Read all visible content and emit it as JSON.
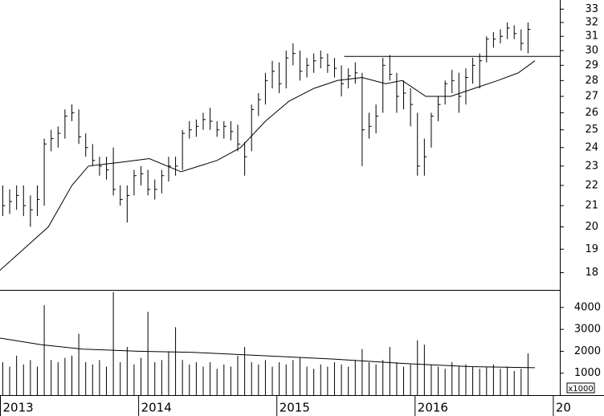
{
  "chart_data": {
    "type": "ohlc",
    "x": [
      2013.02,
      2013.07,
      2013.12,
      2013.17,
      2013.22,
      2013.27,
      2013.32,
      2013.37,
      2013.42,
      2013.47,
      2013.52,
      2013.57,
      2013.62,
      2013.67,
      2013.72,
      2013.77,
      2013.82,
      2013.87,
      2013.92,
      2013.97,
      2014.02,
      2014.07,
      2014.12,
      2014.17,
      2014.22,
      2014.27,
      2014.32,
      2014.37,
      2014.42,
      2014.47,
      2014.52,
      2014.57,
      2014.62,
      2014.67,
      2014.72,
      2014.77,
      2014.82,
      2014.87,
      2014.92,
      2014.97,
      2015.02,
      2015.07,
      2015.12,
      2015.17,
      2015.22,
      2015.27,
      2015.32,
      2015.37,
      2015.42,
      2015.47,
      2015.52,
      2015.57,
      2015.62,
      2015.67,
      2015.72,
      2015.77,
      2015.82,
      2015.87,
      2015.92,
      2015.97,
      2016.02,
      2016.07,
      2016.12,
      2016.17,
      2016.22,
      2016.27,
      2016.32,
      2016.37,
      2016.42,
      2016.47,
      2016.52,
      2016.57,
      2016.62,
      2016.67,
      2016.72,
      2016.77,
      2016.82
    ],
    "high": [
      22,
      21.8,
      22,
      22,
      21.5,
      22,
      24.5,
      25,
      25.2,
      26.2,
      26.5,
      26.2,
      24.8,
      24.2,
      23.5,
      23.5,
      24,
      22,
      22,
      22.8,
      23,
      22.8,
      22.3,
      22.8,
      23.5,
      23.5,
      25,
      25.5,
      25.6,
      26,
      26.3,
      25.5,
      25.5,
      25.5,
      25.3,
      24.3,
      26.5,
      27.2,
      28.5,
      29.3,
      29.2,
      30,
      30.5,
      30,
      29.5,
      29.8,
      30,
      29.8,
      29.5,
      29,
      28.8,
      29.2,
      28.5,
      26,
      26.5,
      29.5,
      29.7,
      28.5,
      28,
      27.5,
      26,
      24.5,
      26,
      27,
      28,
      28.7,
      28.5,
      28.8,
      29.5,
      29.8,
      31,
      31.3,
      31.5,
      32,
      31.8,
      31.5,
      32
    ],
    "low": [
      20.5,
      20.6,
      20.8,
      20.5,
      20,
      20.5,
      21,
      23.8,
      24,
      24.5,
      25.5,
      24.2,
      23.5,
      23,
      22.5,
      22.3,
      21.5,
      21,
      20.2,
      21.5,
      22,
      21.5,
      21.3,
      21.6,
      22.2,
      22.5,
      22.8,
      24.5,
      24.6,
      25,
      25,
      24.6,
      24.5,
      24.4,
      23.8,
      22.5,
      23.8,
      25.8,
      26.5,
      27.5,
      27.2,
      27.5,
      29,
      28,
      28.2,
      28.5,
      28.8,
      28.5,
      28.2,
      27,
      27.5,
      27.8,
      23,
      24.5,
      24.8,
      26,
      28,
      26,
      26.2,
      25.2,
      22.5,
      22.5,
      24,
      25.5,
      26.5,
      27.2,
      26,
      26.5,
      27.8,
      27.5,
      29.2,
      30.2,
      30.5,
      30.8,
      30.8,
      30,
      29.8
    ],
    "close": [
      21,
      21.2,
      21.5,
      21,
      20.8,
      21.3,
      24.2,
      24.5,
      24.8,
      25.8,
      26,
      24.6,
      24,
      23.3,
      23,
      22.8,
      21.8,
      21.3,
      21.5,
      22.5,
      22.6,
      21.8,
      21.8,
      22.5,
      23,
      23,
      24.8,
      25,
      25.2,
      25.6,
      25.5,
      25,
      25.2,
      24.9,
      24.2,
      23.5,
      26.2,
      26.8,
      28,
      28.6,
      27.8,
      29.5,
      29.8,
      28.6,
      29,
      29.3,
      29.5,
      29,
      28.8,
      27.8,
      28.3,
      28.5,
      25,
      25.2,
      25.8,
      29,
      28.4,
      27,
      27.2,
      26.5,
      23,
      23.5,
      25.8,
      26.5,
      27.8,
      28,
      27,
      28.2,
      29,
      29.3,
      30.8,
      30.8,
      31,
      31.6,
      31.2,
      30.5,
      31.5
    ],
    "volume": [
      1500,
      1300,
      1800,
      1400,
      1600,
      1300,
      4100,
      1600,
      1500,
      1700,
      1800,
      2800,
      1500,
      1400,
      1600,
      1300,
      4700,
      1500,
      2200,
      1400,
      1700,
      3800,
      1500,
      1600,
      2000,
      3100,
      1600,
      1400,
      1500,
      1300,
      1500,
      1200,
      1400,
      1300,
      1800,
      2200,
      1500,
      1400,
      1600,
      1300,
      1500,
      1400,
      1600,
      1700,
      1300,
      1200,
      1400,
      1300,
      1500,
      1400,
      1300,
      1600,
      2100,
      1500,
      1400,
      1600,
      2200,
      1500,
      1300,
      1400,
      2500,
      2300,
      1400,
      1300,
      1200,
      1500,
      1300,
      1400,
      1300,
      1200,
      1300,
      1400,
      1200,
      1300,
      1100,
      1200,
      1900
    ],
    "price_ma": {
      "x": [
        2013.0,
        2013.35,
        2013.52,
        2013.64,
        2013.87,
        2014.08,
        2014.31,
        2014.57,
        2014.74,
        2014.92,
        2015.09,
        2015.27,
        2015.44,
        2015.62,
        2015.79,
        2015.91,
        2016.08,
        2016.26,
        2016.43,
        2016.6,
        2016.75,
        2016.87
      ],
      "values": [
        18.1,
        20,
        22,
        23,
        23.2,
        23.4,
        22.7,
        23.3,
        24,
        25.5,
        26.7,
        27.5,
        28,
        28.2,
        27.8,
        28,
        27,
        27,
        27.5,
        28,
        28.5,
        29.3
      ]
    },
    "volume_ma": {
      "x": [
        2013.0,
        2013.3,
        2013.6,
        2014.0,
        2014.4,
        2014.9,
        2015.4,
        2015.9,
        2016.4,
        2016.87
      ],
      "values": [
        2600,
        2300,
        2100,
        2000,
        1950,
        1800,
        1650,
        1450,
        1300,
        1250
      ]
    },
    "resistance": {
      "value": 29.6,
      "x": [
        2015.49,
        2017.05
      ]
    },
    "xlim": [
      2013.0,
      2017.05
    ],
    "xticks": [
      2013,
      2014,
      2015,
      2016,
      {
        "value": 2017,
        "label": "20"
      }
    ],
    "ylim": [
      17.3,
      33.7
    ],
    "log_scale": true,
    "yticks": [
      18,
      19,
      20,
      21,
      22,
      23,
      24,
      25,
      26,
      27,
      28,
      29,
      30,
      31,
      32,
      33
    ],
    "volume_ylim": [
      0,
      4800
    ],
    "volume_yticks": [
      1000,
      2000,
      3000,
      4000
    ],
    "volume_unit": "x1000",
    "color": "#000000"
  }
}
